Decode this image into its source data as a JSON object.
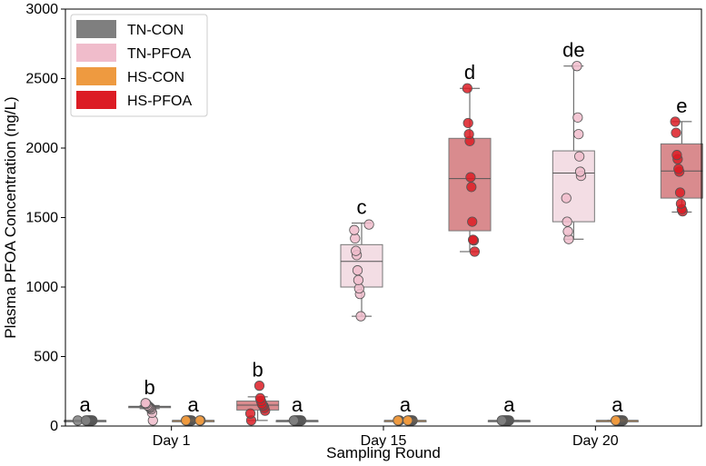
{
  "chart_data": {
    "type": "box",
    "title": "",
    "xlabel": "Sampling Round",
    "ylabel": "Plasma PFOA Concentration (ng/L)",
    "ylim": [
      0,
      3000
    ],
    "yticks": [
      0,
      500,
      1000,
      1500,
      2000,
      2500,
      3000
    ],
    "grid": false,
    "legend_position": "top-left",
    "categories": [
      "Day 1",
      "Day 15",
      "Day 20"
    ],
    "groups": [
      {
        "name": "TN-CON",
        "color": "#7f7f7f",
        "box_color": "#7f7f7f"
      },
      {
        "name": "TN-PFOA",
        "color": "#f0bccb",
        "box_color": "#f3dde4"
      },
      {
        "name": "HS-CON",
        "color": "#ee9a40",
        "box_color": "#ee9a40"
      },
      {
        "name": "HS-PFOA",
        "color": "#dc1c24",
        "box_color": "#d98b8e"
      }
    ],
    "boxes": [
      {
        "category": "Day 1",
        "group": "TN-CON",
        "min": 40,
        "q1": 40,
        "median": 40,
        "q3": 40,
        "max": 40,
        "letter": "a",
        "points": [
          40,
          40,
          40,
          40,
          40,
          40,
          40,
          40,
          40,
          40
        ]
      },
      {
        "category": "Day 1",
        "group": "TN-PFOA",
        "min": 125,
        "q1": 132,
        "median": 138,
        "q3": 142,
        "max": 148,
        "letter": "b",
        "points": [
          40,
          95,
          120,
          130,
          135,
          140,
          145,
          150,
          160,
          165
        ]
      },
      {
        "category": "Day 1",
        "group": "HS-CON",
        "min": 40,
        "q1": 40,
        "median": 40,
        "q3": 40,
        "max": 40,
        "letter": "a",
        "points": [
          40,
          40,
          40,
          40,
          40,
          40,
          40,
          40,
          40,
          40
        ]
      },
      {
        "category": "Day 1",
        "group": "HS-PFOA",
        "min": 40,
        "q1": 115,
        "median": 150,
        "q3": 180,
        "max": 210,
        "letter": "b",
        "points": [
          40,
          90,
          110,
          130,
          145,
          150,
          160,
          180,
          200,
          290
        ]
      },
      {
        "category": "Day 15",
        "group": "TN-CON",
        "min": 40,
        "q1": 40,
        "median": 40,
        "q3": 40,
        "max": 40,
        "letter": "a",
        "points": [
          40,
          40,
          40,
          40,
          40,
          40,
          40,
          40,
          40,
          40
        ]
      },
      {
        "category": "Day 15",
        "group": "TN-PFOA",
        "min": 790,
        "q1": 1000,
        "median": 1185,
        "q3": 1305,
        "max": 1460,
        "letter": "c",
        "points": [
          790,
          950,
          990,
          1050,
          1120,
          1230,
          1260,
          1350,
          1410,
          1450
        ]
      },
      {
        "category": "Day 15",
        "group": "HS-CON",
        "min": 40,
        "q1": 40,
        "median": 40,
        "q3": 40,
        "max": 40,
        "letter": "a",
        "points": [
          40,
          40,
          40,
          40,
          40,
          40,
          40,
          40,
          40,
          40
        ]
      },
      {
        "category": "Day 15",
        "group": "HS-PFOA",
        "min": 1255,
        "q1": 1405,
        "median": 1780,
        "q3": 2070,
        "max": 2430,
        "letter": "d",
        "points": [
          1255,
          1335,
          1340,
          1470,
          1720,
          1790,
          2050,
          2100,
          2180,
          2430
        ]
      },
      {
        "category": "Day 20",
        "group": "TN-CON",
        "min": 40,
        "q1": 40,
        "median": 40,
        "q3": 40,
        "max": 40,
        "letter": "a",
        "points": [
          40,
          40,
          40,
          40,
          40,
          40,
          40,
          40,
          40,
          40
        ]
      },
      {
        "category": "Day 20",
        "group": "TN-PFOA",
        "min": 1345,
        "q1": 1470,
        "median": 1820,
        "q3": 1980,
        "max": 2590,
        "letter": "de",
        "points": [
          1345,
          1400,
          1470,
          1640,
          1800,
          1830,
          1940,
          2100,
          2220,
          2590
        ]
      },
      {
        "category": "Day 20",
        "group": "HS-CON",
        "min": 40,
        "q1": 40,
        "median": 40,
        "q3": 40,
        "max": 40,
        "letter": "a",
        "points": [
          40,
          40,
          40,
          40,
          40,
          40,
          40,
          40,
          40,
          40
        ]
      },
      {
        "category": "Day 20",
        "group": "HS-PFOA",
        "min": 1540,
        "q1": 1640,
        "median": 1835,
        "q3": 2030,
        "max": 2190,
        "letter": "e",
        "points": [
          1545,
          1560,
          1600,
          1680,
          1830,
          1850,
          1920,
          1950,
          2110,
          2190
        ]
      }
    ]
  }
}
